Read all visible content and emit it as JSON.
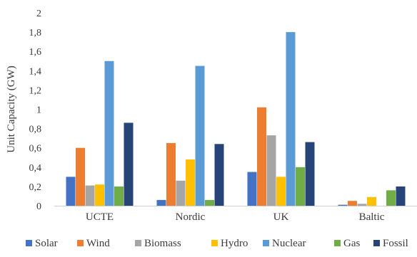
{
  "chart_data": {
    "type": "bar",
    "title": "",
    "xlabel": "",
    "ylabel": "Unit Capacity (GW)",
    "ylim": [
      0,
      2
    ],
    "yticks": [
      0,
      0.2,
      0.4,
      0.6,
      0.8,
      1,
      1.2,
      1.4,
      1.6,
      1.8,
      2
    ],
    "ytick_labels": [
      "0",
      "0,2",
      "0,4",
      "0,6",
      "0,8",
      "1",
      "1,2",
      "1,4",
      "1,6",
      "1,8",
      "2"
    ],
    "grid": false,
    "legend_position": "bottom",
    "categories": [
      "UCTE",
      "Nordic",
      "UK",
      "Baltic"
    ],
    "series": [
      {
        "name": "Solar",
        "color": "#4472C4",
        "values": [
          0.3,
          0.06,
          0.35,
          0.01
        ]
      },
      {
        "name": "Wind",
        "color": "#ED7D31",
        "values": [
          0.6,
          0.65,
          1.02,
          0.05
        ]
      },
      {
        "name": "Biomass",
        "color": "#A5A5A5",
        "values": [
          0.21,
          0.26,
          0.73,
          0.02
        ]
      },
      {
        "name": "Hydro",
        "color": "#FFC000",
        "values": [
          0.22,
          0.48,
          0.3,
          0.09
        ]
      },
      {
        "name": "Nuclear",
        "color": "#5B9BD5",
        "values": [
          1.5,
          1.45,
          1.8,
          0
        ]
      },
      {
        "name": "Gas",
        "color": "#70AD47",
        "values": [
          0.2,
          0.06,
          0.4,
          0.16
        ]
      },
      {
        "name": "Fossil",
        "color": "#264478",
        "values": [
          0.86,
          0.64,
          0.66,
          0.2
        ]
      }
    ]
  }
}
